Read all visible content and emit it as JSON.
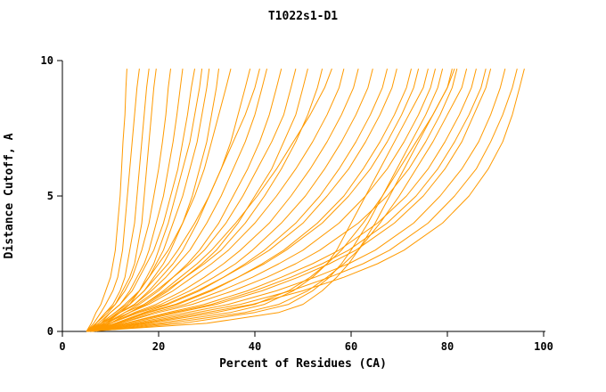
{
  "chart_data": {
    "type": "line",
    "title": "T1022s1-D1",
    "xlabel": "Percent of Residues (CA)",
    "ylabel": "Distance Cutoff, A",
    "xlim": [
      0,
      100
    ],
    "ylim": [
      0,
      10
    ],
    "x_ticks": [
      0,
      20,
      40,
      60,
      80,
      100
    ],
    "y_ticks": [
      0,
      5,
      10
    ],
    "grid": false,
    "legend": "none",
    "line_color": "#ff9a00",
    "y_samples": [
      0,
      0.3,
      0.7,
      1.0,
      1.5,
      2.0,
      2.5,
      3.0,
      4.0,
      5.0,
      6.0,
      7.0,
      8.0,
      9.0,
      9.7
    ],
    "series": [
      [
        5,
        6,
        7,
        8,
        9,
        10,
        10.5,
        11,
        11.5,
        12,
        12.3,
        12.6,
        13,
        13.2,
        13.4
      ],
      [
        5,
        6.5,
        8,
        9,
        10.5,
        11.5,
        12,
        12.5,
        13,
        13.5,
        14,
        14.5,
        15,
        15.5,
        16
      ],
      [
        6,
        7,
        9,
        10.5,
        12,
        13,
        13.5,
        14,
        15,
        15.5,
        16,
        16.5,
        17,
        17.5,
        18
      ],
      [
        5.5,
        7,
        9.5,
        11,
        12.5,
        14,
        15,
        15.5,
        16.5,
        17,
        17.5,
        18,
        18.5,
        19,
        19.5
      ],
      [
        5,
        7,
        9,
        11,
        13,
        14.5,
        15.5,
        16.5,
        18,
        19,
        20,
        20.8,
        21.5,
        22,
        22.5
      ],
      [
        6,
        8,
        10,
        12,
        14,
        15.5,
        17,
        18,
        19.5,
        21,
        22,
        23,
        23.8,
        24.5,
        25
      ],
      [
        5,
        7.5,
        10,
        12,
        14.5,
        16,
        17.5,
        19,
        21,
        22.5,
        24,
        25,
        26,
        26.8,
        27.5
      ],
      [
        6,
        9,
        12,
        14,
        16,
        17.5,
        19,
        20,
        22,
        23.5,
        25,
        26.5,
        27.5,
        28.5,
        29
      ],
      [
        5.5,
        8,
        11,
        13.5,
        16,
        18,
        19.5,
        21,
        23,
        25,
        26.5,
        28,
        29,
        30,
        30.5
      ],
      [
        6,
        8.5,
        11.5,
        14,
        17,
        19,
        21,
        22.5,
        25,
        27,
        28.5,
        30,
        31,
        32,
        32.5
      ],
      [
        5,
        8,
        11,
        13,
        16,
        18,
        20,
        22,
        25,
        27.5,
        29.5,
        31,
        32.5,
        34,
        35
      ],
      [
        6,
        9,
        12,
        15,
        18,
        20.5,
        23,
        25,
        28,
        30.5,
        33,
        35,
        36.5,
        38,
        39
      ],
      [
        5.5,
        8.5,
        12,
        15,
        18.5,
        21.5,
        24,
        26.5,
        30,
        33,
        35.5,
        38,
        40,
        41.5,
        42.5
      ],
      [
        6,
        9.5,
        13,
        16,
        20,
        23,
        26,
        28.5,
        32.5,
        35.5,
        38.5,
        41,
        43,
        44.5,
        45.5
      ],
      [
        5,
        8,
        12,
        15.5,
        19.5,
        23,
        26.5,
        29.5,
        34,
        37.5,
        40.5,
        43.5,
        46,
        47.5,
        48.5
      ],
      [
        6,
        10,
        14,
        17.5,
        22,
        25.5,
        29,
        32,
        36.5,
        40,
        43.5,
        46,
        48.5,
        50,
        51
      ],
      [
        5.5,
        9,
        13,
        17,
        21.5,
        25.5,
        29.5,
        33,
        38,
        42,
        45.5,
        48.5,
        51,
        53,
        54
      ],
      [
        5,
        9,
        14,
        18,
        23,
        27,
        31,
        34.5,
        40,
        44.5,
        48.5,
        52,
        55,
        57.5,
        58.5
      ],
      [
        6,
        10,
        15,
        19.5,
        25,
        29.5,
        33.5,
        37,
        43,
        47.5,
        51.5,
        55,
        58,
        60.5,
        61.5
      ],
      [
        5.5,
        10,
        15.5,
        20.5,
        26.5,
        31.5,
        36,
        39.5,
        45.5,
        50.5,
        54.5,
        58,
        61,
        63.5,
        64.5
      ],
      [
        6,
        11,
        17,
        22,
        28.5,
        33.5,
        38,
        42,
        48.5,
        53.5,
        57.5,
        61,
        64,
        66.5,
        67.5
      ],
      [
        5,
        10,
        16,
        21.5,
        28,
        33.5,
        38.5,
        43,
        50,
        55,
        59.5,
        63,
        66,
        68.5,
        69.5
      ],
      [
        6,
        11.5,
        18,
        24,
        31,
        36.5,
        41.5,
        46,
        53,
        58.5,
        62.5,
        66,
        69,
        71.5,
        72.5
      ],
      [
        5.5,
        11,
        17.5,
        23.5,
        30.5,
        36.5,
        42,
        46.5,
        54,
        59.5,
        64,
        67.5,
        70.5,
        73,
        74
      ],
      [
        6,
        12,
        19,
        25.5,
        33,
        39.5,
        45,
        50,
        57.5,
        63,
        67.5,
        71,
        74,
        76.5,
        77.5
      ],
      [
        5,
        12,
        20,
        27,
        35.5,
        42.5,
        48.5,
        53.5,
        61.5,
        67.5,
        72,
        75.5,
        78.5,
        81,
        82
      ],
      [
        6,
        13,
        22,
        29.5,
        38.5,
        45.5,
        52,
        57.5,
        65.5,
        71.5,
        76,
        79.5,
        82.5,
        85,
        86
      ],
      [
        5.5,
        14,
        24,
        32,
        41.5,
        49,
        55.5,
        61,
        69,
        75,
        79.5,
        83,
        85.5,
        88,
        89
      ],
      [
        6,
        15,
        26,
        34.5,
        44.5,
        52.5,
        59.5,
        65,
        73,
        78.5,
        83,
        86.5,
        89,
        91,
        92
      ],
      [
        5,
        16,
        28,
        37,
        47.5,
        55.5,
        62.5,
        68,
        76,
        81.5,
        86,
        89,
        91.5,
        93.5,
        94.5
      ],
      [
        6,
        17,
        30,
        39.5,
        50,
        58.5,
        65.5,
        71,
        79,
        84.5,
        88.5,
        91.5,
        93.5,
        95,
        96
      ],
      [
        5.5,
        13,
        23,
        31,
        40,
        47.5,
        54,
        59.5,
        67.5,
        73.5,
        78,
        81.5,
        84.5,
        87,
        88
      ],
      [
        5,
        20,
        35,
        42,
        48,
        52,
        55,
        57,
        60,
        63,
        66,
        69,
        72,
        75,
        76
      ],
      [
        6,
        25,
        40,
        47,
        52,
        55.5,
        58,
        60,
        63.5,
        66.5,
        69.5,
        72.5,
        75.5,
        78,
        79
      ],
      [
        5,
        30,
        45,
        50,
        54,
        57,
        59.5,
        61.5,
        65,
        68,
        71,
        74,
        77,
        80,
        81
      ],
      [
        6,
        22,
        38,
        45,
        51,
        55,
        58.5,
        61.5,
        66,
        70,
        73.5,
        77,
        80,
        83,
        84
      ],
      [
        5,
        18,
        32,
        40,
        47,
        51.5,
        55,
        58,
        62.5,
        66.5,
        70,
        73.5,
        77,
        80,
        81.5
      ],
      [
        7,
        9,
        12,
        14,
        17,
        19.5,
        22,
        24,
        27.5,
        30.5,
        33,
        35.5,
        38,
        40,
        41
      ],
      [
        7,
        10,
        14,
        17,
        21,
        24.5,
        28,
        31,
        36,
        40.5,
        44.5,
        48,
        51.5,
        54.5,
        56
      ]
    ]
  }
}
